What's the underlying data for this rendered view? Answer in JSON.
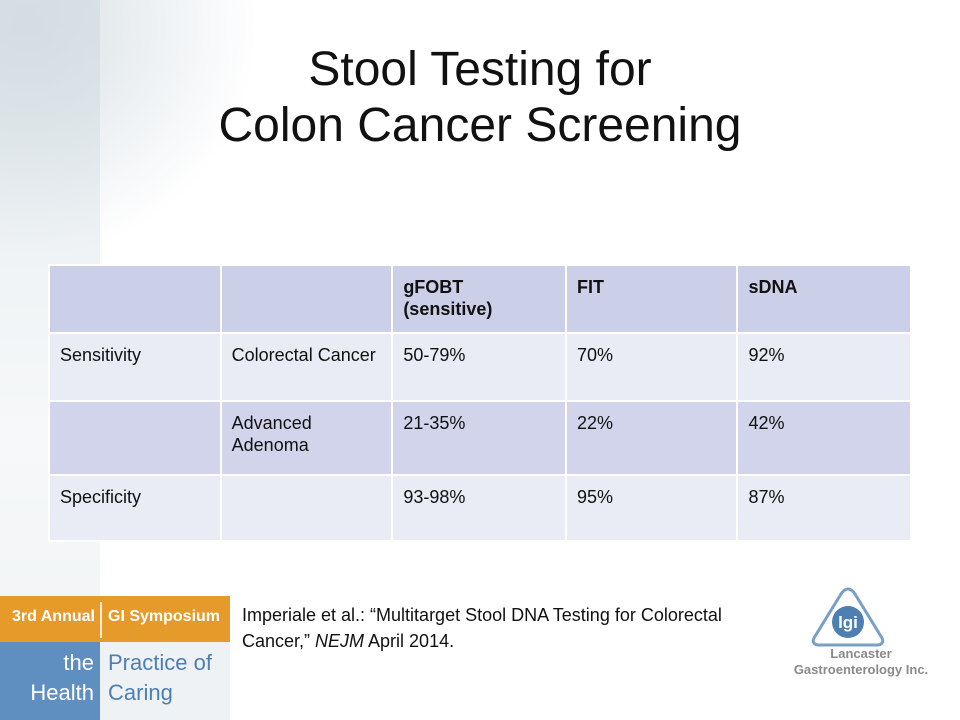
{
  "title_line1": "Stool Testing for",
  "title_line2": "Colon Cancer Screening",
  "table": {
    "header": [
      "",
      "",
      "gFOBT (sensitive)",
      "FIT",
      "sDNA"
    ],
    "rows": [
      [
        "Sensitivity",
        "Colorectal Cancer",
        "50-79%",
        "70%",
        "92%"
      ],
      [
        "",
        "Advanced Adenoma",
        "21-35%",
        "22%",
        "42%"
      ],
      [
        "Specificity",
        "",
        "93-98%",
        "95%",
        "87%"
      ]
    ]
  },
  "citation": {
    "prefix": "Imperiale et al.: “Multitarget Stool DNA Testing for Colorectal Cancer,” ",
    "journal": "NEJM",
    "suffix": " April 2014."
  },
  "banner": {
    "top_left": "3rd Annual",
    "top_right": "GI Symposium",
    "left_line1": "the",
    "left_line2": "Health",
    "right_line1": "Practice of",
    "right_line2": "Caring"
  },
  "logo": {
    "mark_text": "lgi",
    "name_line1": "Lancaster",
    "name_line2": "Gastroenterology Inc."
  },
  "colors": {
    "header_row": "#cbcfe8",
    "light_row": "#e9ebf5",
    "dark_row": "#d1d4ea",
    "banner_orange": "#e69a2a",
    "banner_blue": "#5f8fc0",
    "logo_blue": "#4d7fb3"
  }
}
